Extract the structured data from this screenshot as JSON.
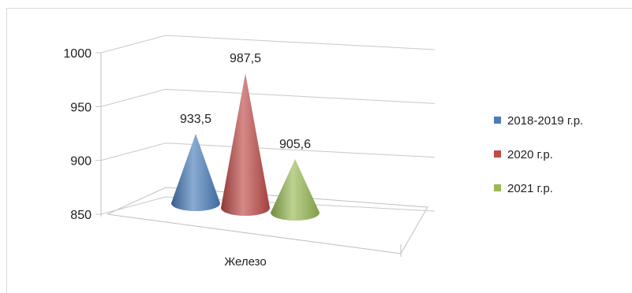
{
  "chart_data": {
    "type": "bar",
    "style": "3d-cone",
    "categories": [
      "Железо"
    ],
    "series": [
      {
        "name": "2018-2019 г.р.",
        "values": [
          933.5
        ],
        "label": "933,5",
        "color": "#4a7ebb"
      },
      {
        "name": "2020 г.р.",
        "values": [
          987.5
        ],
        "label": "987,5",
        "color": "#be4b48"
      },
      {
        "name": "2021 г.р.",
        "values": [
          905.6
        ],
        "label": "905,6",
        "color": "#98b954"
      }
    ],
    "yticks": [
      "850",
      "900",
      "950",
      "1000"
    ],
    "ylim": [
      850,
      1000
    ],
    "grid": true,
    "legend_position": "right"
  }
}
